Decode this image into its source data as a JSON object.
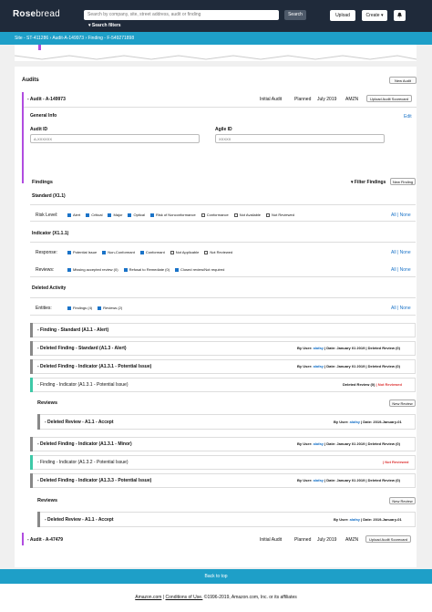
{
  "header": {
    "logo_bold": "Rose",
    "logo_rest": "bread",
    "search_placeholder": "Search by company, site, street address, audit or finding",
    "search_button": "Search",
    "search_filters": "▾ Search filters",
    "upload": "Upload",
    "create": "Create ▾",
    "bell_icon": "bell-icon"
  },
  "breadcrumb": "Site - ST-411286 › Audit-A-149973 › Finding - F-549271898",
  "audits": {
    "title": "Audits",
    "new_audit": "New Audit",
    "audit1": {
      "title": "- Audit - A-149973",
      "type": "Initial Audit",
      "status": "Planned",
      "date": "July 2019",
      "org": "AMZN",
      "scorecard": "Upload Audit Scorecard"
    },
    "general_info": "General Info",
    "edit": "Edit",
    "audit_id_label": "Audit ID",
    "audit_id_value": "A-XXXXXX",
    "agile_id_label": "Agile ID",
    "agile_id_value": "XXXXX",
    "audit2": {
      "title": "- Audit - A-47479",
      "type": "Initial Audit",
      "status": "Planned",
      "date": "July 2019",
      "org": "AMZN",
      "scorecard": "Upload Audit Scorecard"
    }
  },
  "findings": {
    "title": "Findings",
    "filter": "Filter Findings",
    "new_finding": "New Finding",
    "standard": "Standard (X1.1)",
    "risk_label": "Risk Level:",
    "risk_options": [
      "Alert",
      "Critical",
      "Major",
      "Optical",
      "Risk of Nonconformance",
      "Conformance",
      "Not Available",
      "Not Reviewed"
    ],
    "all": "All",
    "none": "None",
    "indicator": "Indicator (X1.1.1)",
    "response_label": "Response:",
    "response_options": [
      "Potential Issue",
      "Non-Conformant",
      "Conformant",
      "Not Applicable",
      "Not Reviewed"
    ],
    "reviews_label": "Reviews:",
    "reviews_options": [
      "Missing accepted review (0)",
      "Refusal to Remediate (0)",
      "Closed review/Not required"
    ],
    "deleted_activity": "Deleted Activity",
    "entities_label": "Entities:",
    "entities_options": [
      "Findings (4)",
      "Reviews (2)"
    ]
  },
  "rows": [
    {
      "title": "- Finding - Standard (A1.1 - Alert)",
      "meta": ""
    },
    {
      "title": "- Deleted Finding - Standard (A1.3 - Alert)",
      "by": "By User:",
      "user": "alafay",
      "rest": "| Date: January 01 2019 | Deleted Review (0)"
    },
    {
      "title": "- Deleted Finding - Indicator (A1.3.1 - Potential Issue)",
      "by": "By User:",
      "user": "alafay",
      "rest": "| Date: January 01 2019 | Deleted Review (0)"
    },
    {
      "title": "- Finding - Indicator (A1.3.1 - Potential Issue)",
      "rest": "Deleted Review (0)",
      "red": "| Not Reviewed"
    },
    {
      "title": "- Deleted Review - A1.1 - Accept",
      "by": "By User:",
      "user": "alafay",
      "rest": "| Date: 2019-January-01"
    },
    {
      "title": "- Deleted Finding - Indicator (A1.3.1 - Minor)",
      "by": "By User:",
      "user": "alafay",
      "rest": "| Date: January 01 2019 | Deleted Review (0)"
    },
    {
      "title": "- Finding - Indicator (A1.3.2 - Potential Issue)",
      "red": "| Not Reviewed"
    },
    {
      "title": "- Deleted Finding - Indicator (A1.3.3 - Potential Issue)",
      "by": "By User:",
      "user": "alafay",
      "rest": "| Date: January 01 2019 | Deleted Review (0)"
    },
    {
      "title": "- Deleted Review - A1.1 - Accept",
      "by": "By User:",
      "user": "alafay",
      "rest": "| Date: 2019-January-01"
    }
  ],
  "reviews1": {
    "title": "Reviews",
    "new_review": "New Review"
  },
  "reviews2": {
    "title": "Reviews",
    "new_review": "New Review"
  },
  "footer": {
    "back_to_top": "Back to top",
    "amazon": "Amazon.com",
    "conditions": "Conditions of Use.",
    "copyright": "©1996-2019, Amazon.com, Inc. or its affiliates"
  }
}
